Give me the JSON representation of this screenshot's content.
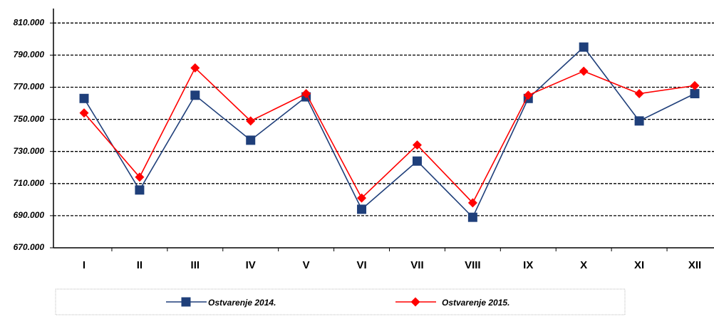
{
  "chart_data": {
    "type": "line",
    "categories": [
      "I",
      "II",
      "III",
      "IV",
      "V",
      "VI",
      "VII",
      "VIII",
      "IX",
      "X",
      "XI",
      "XII"
    ],
    "series": [
      {
        "name": "Ostvarenje 2014.",
        "color": "#1f3f7a",
        "marker": "square",
        "values": [
          763000,
          706000,
          765000,
          737000,
          764000,
          694000,
          724000,
          689000,
          763000,
          795000,
          749000,
          766000
        ]
      },
      {
        "name": "Ostvarenje 2015.",
        "color": "#ff0000",
        "marker": "diamond",
        "values": [
          754000,
          714000,
          782000,
          749000,
          766000,
          701000,
          734000,
          698000,
          765000,
          780000,
          766000,
          771000
        ]
      }
    ],
    "ylim": [
      670000,
      819000
    ],
    "yticks": [
      {
        "value": 670000,
        "label": "670.000"
      },
      {
        "value": 690000,
        "label": "690.000"
      },
      {
        "value": 710000,
        "label": "710.000"
      },
      {
        "value": 730000,
        "label": "730.000"
      },
      {
        "value": 750000,
        "label": "750.000"
      },
      {
        "value": 770000,
        "label": "770.000"
      },
      {
        "value": 790000,
        "label": "790.000"
      },
      {
        "value": 810000,
        "label": "810.000"
      }
    ],
    "grid": true,
    "legend": "bottom"
  }
}
